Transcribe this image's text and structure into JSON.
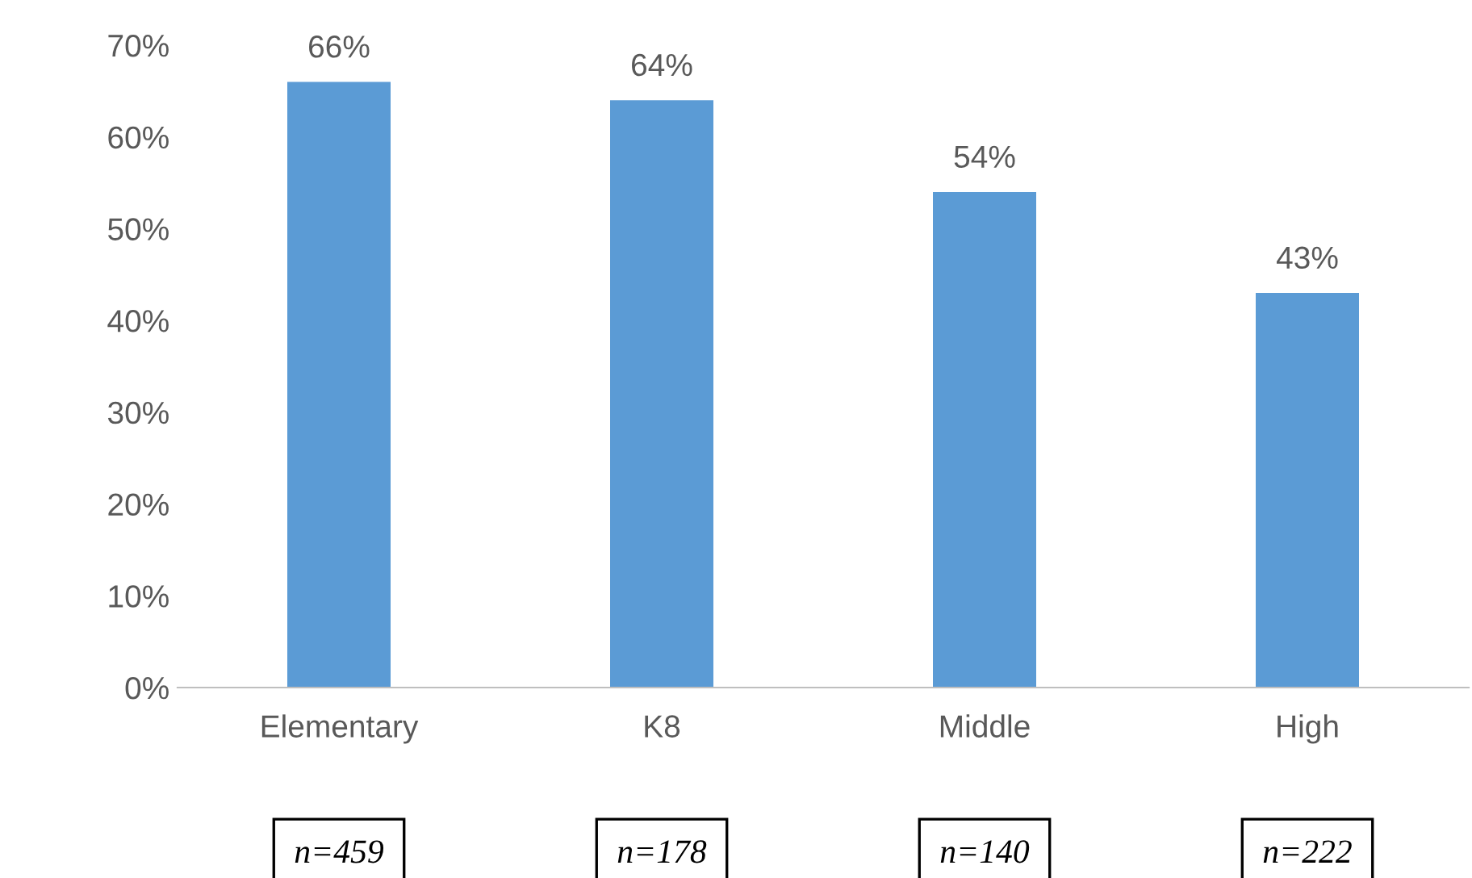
{
  "chart_data": {
    "type": "bar",
    "categories": [
      "Elementary",
      "K8",
      "Middle",
      "High"
    ],
    "values": [
      66,
      64,
      54,
      43
    ],
    "value_labels": [
      "66%",
      "64%",
      "54%",
      "43%"
    ],
    "color": "#5b9bd5",
    "ylim": [
      0,
      70
    ],
    "yticks": [
      {
        "value": 0,
        "label": "0%"
      },
      {
        "value": 10,
        "label": "10%"
      },
      {
        "value": 20,
        "label": "20%"
      },
      {
        "value": 30,
        "label": "30%"
      },
      {
        "value": 40,
        "label": "40%"
      },
      {
        "value": 50,
        "label": "50%"
      },
      {
        "value": 60,
        "label": "60%"
      },
      {
        "value": 70,
        "label": "70%"
      }
    ],
    "grid": false,
    "legend": false,
    "annotations": [
      "n=459",
      "n=178",
      "n=140",
      "n=222"
    ]
  }
}
